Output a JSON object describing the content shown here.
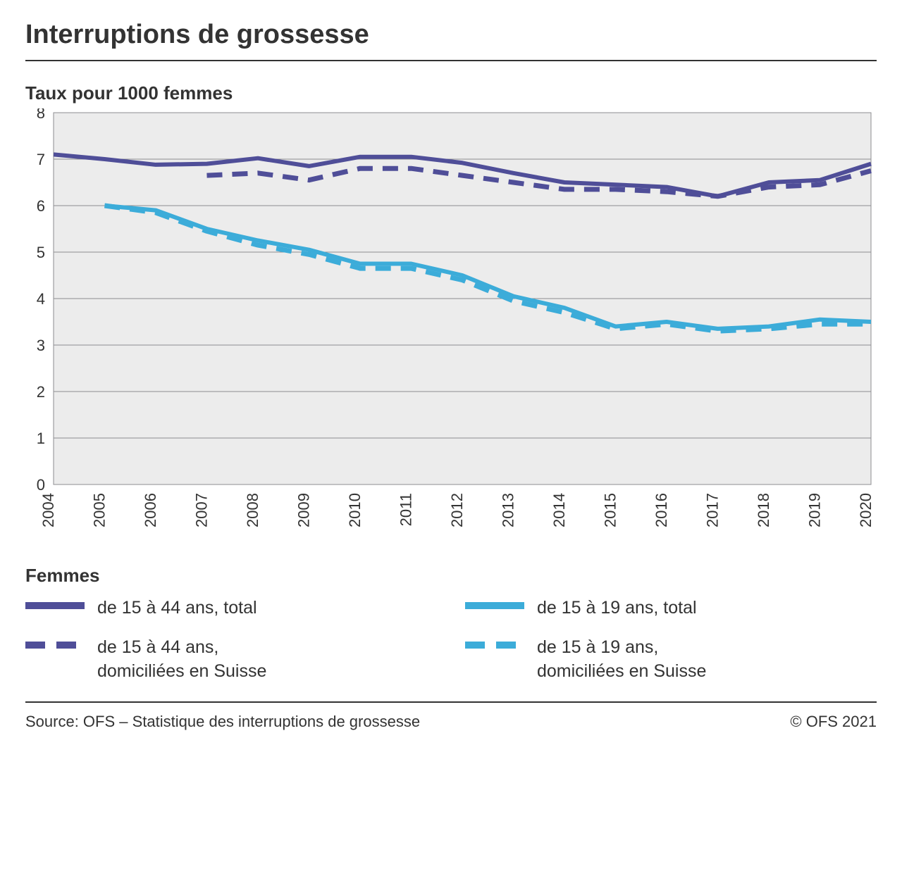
{
  "title": "Interruptions de grossesse",
  "subtitle": "Taux pour 1000 femmes",
  "footer_source": "Source: OFS – Statistique des interruptions de grossesse",
  "footer_copyright": "© OFS 2021",
  "legend_title": "Femmes",
  "chart": {
    "type": "line",
    "background_color": "#ececec",
    "border_color": "#8d8d91",
    "grid_color": "#8d8d91",
    "tick_font_size": 22,
    "tick_color": "#333333",
    "x": {
      "min": 2004,
      "max": 2020,
      "ticks": [
        2004,
        2005,
        2006,
        2007,
        2008,
        2009,
        2010,
        2011,
        2012,
        2013,
        2014,
        2015,
        2016,
        2017,
        2018,
        2019,
        2020
      ]
    },
    "y": {
      "min": 0,
      "max": 8,
      "ticks": [
        0,
        1,
        2,
        3,
        4,
        5,
        6,
        7,
        8
      ]
    },
    "series": [
      {
        "id": "s1",
        "label": "de 15 à 44 ans, total",
        "color": "#4f4e98",
        "width": 6,
        "dash": "",
        "points": [
          [
            2004,
            7.1
          ],
          [
            2005,
            7.0
          ],
          [
            2006,
            6.88
          ],
          [
            2007,
            6.9
          ],
          [
            2008,
            7.02
          ],
          [
            2009,
            6.85
          ],
          [
            2010,
            7.05
          ],
          [
            2011,
            7.05
          ],
          [
            2012,
            6.92
          ],
          [
            2013,
            6.7
          ],
          [
            2014,
            6.5
          ],
          [
            2015,
            6.45
          ],
          [
            2016,
            6.4
          ],
          [
            2017,
            6.2
          ],
          [
            2018,
            6.5
          ],
          [
            2019,
            6.55
          ],
          [
            2020,
            6.9
          ]
        ]
      },
      {
        "id": "s2",
        "label": "de 15 à 44 ans,\ndomiciliées en Suisse",
        "color": "#4f4e98",
        "width": 7,
        "dash": "22 14",
        "points": [
          [
            2007,
            6.65
          ],
          [
            2008,
            6.7
          ],
          [
            2009,
            6.55
          ],
          [
            2010,
            6.8
          ],
          [
            2011,
            6.8
          ],
          [
            2012,
            6.65
          ],
          [
            2013,
            6.5
          ],
          [
            2014,
            6.35
          ],
          [
            2015,
            6.35
          ],
          [
            2016,
            6.3
          ],
          [
            2017,
            6.2
          ],
          [
            2018,
            6.4
          ],
          [
            2019,
            6.45
          ],
          [
            2020,
            6.75
          ]
        ]
      },
      {
        "id": "s3",
        "label": "de 15 à 19 ans, total",
        "color": "#3cacd9",
        "width": 6,
        "dash": "",
        "points": [
          [
            2005,
            6.0
          ],
          [
            2006,
            5.9
          ],
          [
            2007,
            5.5
          ],
          [
            2008,
            5.25
          ],
          [
            2009,
            5.05
          ],
          [
            2010,
            4.75
          ],
          [
            2011,
            4.75
          ],
          [
            2012,
            4.5
          ],
          [
            2013,
            4.05
          ],
          [
            2014,
            3.8
          ],
          [
            2015,
            3.4
          ],
          [
            2016,
            3.5
          ],
          [
            2017,
            3.35
          ],
          [
            2018,
            3.4
          ],
          [
            2019,
            3.55
          ],
          [
            2020,
            3.5
          ]
        ]
      },
      {
        "id": "s4",
        "label": "de 15 à 19 ans,\ndomiciliées en Suisse",
        "color": "#3cacd9",
        "width": 7,
        "dash": "22 14",
        "points": [
          [
            2005,
            6.0
          ],
          [
            2006,
            5.85
          ],
          [
            2007,
            5.45
          ],
          [
            2008,
            5.15
          ],
          [
            2009,
            4.95
          ],
          [
            2010,
            4.65
          ],
          [
            2011,
            4.65
          ],
          [
            2012,
            4.4
          ],
          [
            2013,
            3.95
          ],
          [
            2014,
            3.7
          ],
          [
            2015,
            3.35
          ],
          [
            2016,
            3.45
          ],
          [
            2017,
            3.3
          ],
          [
            2018,
            3.35
          ],
          [
            2019,
            3.45
          ],
          [
            2020,
            3.45
          ]
        ]
      }
    ]
  }
}
